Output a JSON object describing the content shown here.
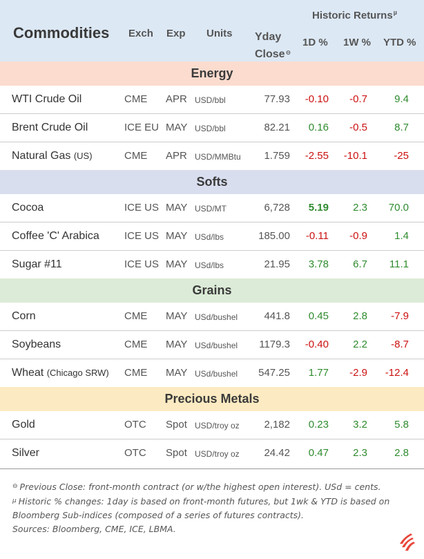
{
  "header": {
    "title": "Commodities",
    "exch": "Exch",
    "exp": "Exp",
    "units": "Units",
    "yday": "Yday",
    "close": "Close",
    "close_marker": "⊖",
    "historic": "Historic Returns",
    "historic_marker": "µ",
    "d1": "1D %",
    "w1": "1W %",
    "ytd": "YTD %"
  },
  "colors": {
    "header_bg": "#dce8f4",
    "energy_bg": "#fbdccf",
    "softs_bg": "#d9deef",
    "grains_bg": "#dcebd7",
    "metals_bg": "#fcebc2",
    "positive": "#2e8b2e",
    "negative": "#cc1111"
  },
  "sections": {
    "energy": "Energy",
    "softs": "Softs",
    "grains": "Grains",
    "metals": "Precious Metals"
  },
  "rows": [
    {
      "name": "WTI Crude Oil",
      "sub": "",
      "exch": "CME",
      "exp": "APR",
      "units": "USD/bbl",
      "close": "77.93",
      "d1": "-0.10",
      "w1": "-0.7",
      "ytd": "9.4"
    },
    {
      "name": "Brent Crude Oil",
      "sub": "",
      "exch": "ICE EU",
      "exp": "MAY",
      "units": "USD/bbl",
      "close": "82.21",
      "d1": "0.16",
      "w1": "-0.5",
      "ytd": "8.7"
    },
    {
      "name": "Natural Gas ",
      "sub": "(US)",
      "exch": "CME",
      "exp": "APR",
      "units": "USD/MMBtu",
      "close": "1.759",
      "d1": "-2.55",
      "w1": "-10.1",
      "ytd": "-25"
    },
    {
      "name": "Cocoa",
      "sub": "",
      "exch": "ICE US",
      "exp": "MAY",
      "units": "USD/MT",
      "close": "6,728",
      "d1": "5.19",
      "w1": "2.3",
      "ytd": "70.0"
    },
    {
      "name": "Coffee 'C' Arabica",
      "sub": "",
      "exch": "ICE US",
      "exp": "MAY",
      "units": "USd/lbs",
      "close": "185.00",
      "d1": "-0.11",
      "w1": "-0.9",
      "ytd": "1.4"
    },
    {
      "name": "Sugar #11",
      "sub": "",
      "exch": "ICE US",
      "exp": "MAY",
      "units": "USd/lbs",
      "close": "21.95",
      "d1": "3.78",
      "w1": "6.7",
      "ytd": "11.1"
    },
    {
      "name": "Corn",
      "sub": "",
      "exch": "CME",
      "exp": "MAY",
      "units": "USd/bushel",
      "close": "441.8",
      "d1": "0.45",
      "w1": "2.8",
      "ytd": "-7.9"
    },
    {
      "name": "Soybeans",
      "sub": "",
      "exch": "CME",
      "exp": "MAY",
      "units": "USd/bushel",
      "close": "1179.3",
      "d1": "-0.40",
      "w1": "2.2",
      "ytd": "-8.7"
    },
    {
      "name": "Wheat ",
      "sub": "(Chicago SRW)",
      "exch": "CME",
      "exp": "MAY",
      "units": "USd/bushel",
      "close": "547.25",
      "d1": "1.77",
      "w1": "-2.9",
      "ytd": "-12.4"
    },
    {
      "name": "Gold",
      "sub": "",
      "exch": "OTC",
      "exp": "Spot",
      "units": "USD/troy oz",
      "close": "2,182",
      "d1": "0.23",
      "w1": "3.2",
      "ytd": "5.8"
    },
    {
      "name": "Silver",
      "sub": "",
      "exch": "OTC",
      "exp": "Spot",
      "units": "USD/troy oz",
      "close": "24.42",
      "d1": "0.47",
      "w1": "2.3",
      "ytd": "2.8"
    }
  ],
  "notes": {
    "close_mark": "⊖",
    "close_note": "Previous Close: front-month contract (or w/the highest open interest). USd = cents.",
    "hist_mark": "µ",
    "hist_note": "Historic % changes: 1day is based on front-month futures, but 1wk & YTD is based on Bloomberg Sub-indices (composed of a series of futures contracts).",
    "sources": "Sources: Bloomberg, CME, ICE, LBMA."
  },
  "logo_icon": "flame-stripes-logo"
}
